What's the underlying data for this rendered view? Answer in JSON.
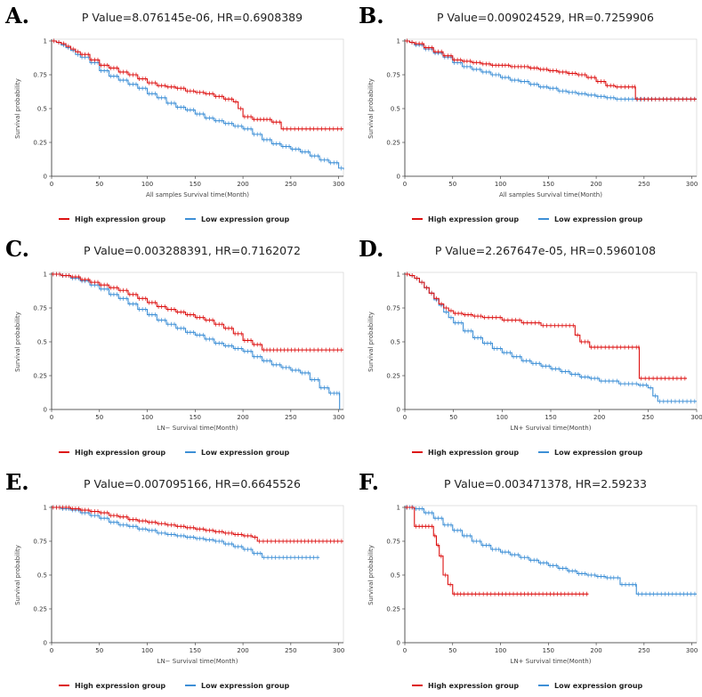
{
  "colors": {
    "high": "#dd1111",
    "low": "#3d8fd6",
    "axis": "#333333",
    "grid": "#dddddd"
  },
  "chart_data": [
    {
      "type": "line",
      "letter": "A.",
      "title": "P Value=8.076145e-06, HR=0.6908389",
      "xlabel": "All samples Survival time(Month)",
      "ylabel": "Survival probability",
      "xlim": [
        0,
        305
      ],
      "ylim": [
        0,
        1
      ],
      "xticks": [
        "0",
        "50",
        "100",
        "150",
        "200",
        "250",
        "300"
      ],
      "yticks": [
        "0",
        "0.25",
        "0.5",
        "0.75",
        "1"
      ],
      "legend": [
        "High expression group",
        "Low expression group"
      ],
      "series": [
        {
          "name": "High expression group",
          "x": [
            0,
            5,
            10,
            15,
            20,
            25,
            30,
            40,
            50,
            60,
            70,
            80,
            90,
            100,
            110,
            120,
            130,
            140,
            150,
            160,
            170,
            180,
            190,
            195,
            200,
            210,
            220,
            230,
            240,
            260,
            280,
            305
          ],
          "y": [
            1.0,
            0.99,
            0.98,
            0.96,
            0.94,
            0.92,
            0.9,
            0.86,
            0.82,
            0.8,
            0.77,
            0.75,
            0.72,
            0.69,
            0.67,
            0.66,
            0.65,
            0.63,
            0.62,
            0.61,
            0.59,
            0.57,
            0.55,
            0.5,
            0.44,
            0.42,
            0.42,
            0.4,
            0.35,
            0.35,
            0.35,
            0.35
          ]
        },
        {
          "name": "Low expression group",
          "x": [
            0,
            5,
            10,
            15,
            20,
            25,
            30,
            40,
            50,
            60,
            70,
            80,
            90,
            100,
            110,
            120,
            130,
            140,
            150,
            160,
            170,
            180,
            190,
            200,
            210,
            220,
            230,
            240,
            250,
            260,
            270,
            280,
            290,
            300,
            305
          ],
          "y": [
            1.0,
            0.99,
            0.97,
            0.95,
            0.93,
            0.9,
            0.88,
            0.84,
            0.78,
            0.74,
            0.71,
            0.68,
            0.65,
            0.61,
            0.58,
            0.54,
            0.51,
            0.49,
            0.46,
            0.43,
            0.41,
            0.39,
            0.37,
            0.35,
            0.31,
            0.27,
            0.24,
            0.22,
            0.2,
            0.18,
            0.15,
            0.12,
            0.1,
            0.06,
            0.05
          ]
        }
      ]
    },
    {
      "type": "line",
      "letter": "B.",
      "title": "P Value=0.009024529, HR=0.7259906",
      "xlabel": "All samples Survival time(Month)",
      "ylabel": "Survival probability",
      "xlim": [
        0,
        305
      ],
      "ylim": [
        0,
        1
      ],
      "xticks": [
        "0",
        "50",
        "100",
        "150",
        "200",
        "250",
        "300"
      ],
      "yticks": [
        "0",
        "0.25",
        "0.5",
        "0.75",
        "1"
      ],
      "legend": [
        "High expression group",
        "Low expression group"
      ],
      "series": [
        {
          "name": "High expression group",
          "x": [
            0,
            5,
            10,
            20,
            30,
            40,
            50,
            60,
            70,
            80,
            90,
            100,
            110,
            120,
            130,
            140,
            150,
            160,
            170,
            180,
            190,
            200,
            210,
            220,
            240,
            241,
            260,
            280,
            305
          ],
          "y": [
            1.0,
            0.99,
            0.98,
            0.95,
            0.92,
            0.89,
            0.86,
            0.85,
            0.84,
            0.83,
            0.82,
            0.82,
            0.81,
            0.81,
            0.8,
            0.79,
            0.78,
            0.77,
            0.76,
            0.75,
            0.73,
            0.7,
            0.67,
            0.66,
            0.66,
            0.57,
            0.57,
            0.57,
            0.57
          ]
        },
        {
          "name": "Low expression group",
          "x": [
            0,
            5,
            10,
            20,
            30,
            40,
            50,
            60,
            70,
            80,
            90,
            100,
            110,
            120,
            130,
            140,
            150,
            160,
            170,
            180,
            190,
            200,
            210,
            220,
            240,
            260,
            280,
            305
          ],
          "y": [
            1.0,
            0.99,
            0.97,
            0.94,
            0.91,
            0.88,
            0.84,
            0.81,
            0.79,
            0.77,
            0.75,
            0.73,
            0.71,
            0.7,
            0.68,
            0.66,
            0.65,
            0.63,
            0.62,
            0.61,
            0.6,
            0.59,
            0.58,
            0.57,
            0.57,
            0.57,
            0.57,
            0.57
          ]
        }
      ]
    },
    {
      "type": "line",
      "letter": "C.",
      "title": "P Value=0.003288391, HR=0.7162072",
      "xlabel": "LN− Survival time(Month)",
      "ylabel": "Survival probability",
      "xlim": [
        0,
        305
      ],
      "ylim": [
        0,
        1
      ],
      "xticks": [
        "0",
        "50",
        "100",
        "150",
        "200",
        "250",
        "300"
      ],
      "yticks": [
        "0",
        "0.25",
        "0.5",
        "0.75",
        "1"
      ],
      "legend": [
        "High expression group",
        "Low expression group"
      ],
      "series": [
        {
          "name": "High expression group",
          "x": [
            0,
            10,
            20,
            30,
            40,
            50,
            60,
            70,
            80,
            90,
            100,
            110,
            120,
            130,
            140,
            150,
            160,
            170,
            180,
            190,
            200,
            210,
            220,
            230,
            260,
            305
          ],
          "y": [
            1.0,
            0.99,
            0.98,
            0.96,
            0.94,
            0.92,
            0.9,
            0.88,
            0.85,
            0.82,
            0.79,
            0.76,
            0.74,
            0.72,
            0.7,
            0.68,
            0.66,
            0.63,
            0.6,
            0.56,
            0.51,
            0.48,
            0.44,
            0.44,
            0.44,
            0.44
          ]
        },
        {
          "name": "Low expression group",
          "x": [
            0,
            10,
            20,
            30,
            40,
            50,
            60,
            70,
            80,
            90,
            100,
            110,
            120,
            130,
            140,
            150,
            160,
            170,
            180,
            190,
            200,
            210,
            220,
            230,
            240,
            250,
            260,
            270,
            280,
            290,
            300,
            301
          ],
          "y": [
            1.0,
            0.99,
            0.97,
            0.95,
            0.92,
            0.89,
            0.85,
            0.82,
            0.78,
            0.74,
            0.7,
            0.66,
            0.63,
            0.6,
            0.57,
            0.55,
            0.52,
            0.49,
            0.47,
            0.45,
            0.43,
            0.39,
            0.36,
            0.33,
            0.31,
            0.29,
            0.27,
            0.22,
            0.16,
            0.12,
            0.12,
            0.0
          ]
        }
      ]
    },
    {
      "type": "line",
      "letter": "D.",
      "title": "P Value=2.267647e-05, HR=0.5960108",
      "xlabel": "LN+ Survival time(Month)",
      "ylabel": "Survival probability",
      "xlim": [
        0,
        300
      ],
      "ylim": [
        0,
        1
      ],
      "xticks": [
        "0",
        "50",
        "100",
        "150",
        "200",
        "250",
        "300"
      ],
      "yticks": [
        "0",
        "0.25",
        "0.5",
        "0.75",
        "1"
      ],
      "legend": [
        "High expression group",
        "Low expression group"
      ],
      "series": [
        {
          "name": "High expression group",
          "x": [
            0,
            5,
            10,
            15,
            20,
            25,
            30,
            35,
            40,
            45,
            50,
            60,
            70,
            80,
            100,
            120,
            140,
            160,
            175,
            180,
            190,
            200,
            240,
            241,
            290
          ],
          "y": [
            1.0,
            0.99,
            0.97,
            0.94,
            0.9,
            0.86,
            0.82,
            0.78,
            0.75,
            0.73,
            0.71,
            0.7,
            0.69,
            0.68,
            0.66,
            0.64,
            0.62,
            0.62,
            0.55,
            0.5,
            0.46,
            0.46,
            0.46,
            0.23,
            0.23
          ]
        },
        {
          "name": "Low expression group",
          "x": [
            0,
            5,
            10,
            15,
            20,
            25,
            30,
            35,
            40,
            45,
            50,
            60,
            70,
            80,
            90,
            100,
            110,
            120,
            130,
            140,
            150,
            160,
            170,
            180,
            190,
            200,
            220,
            240,
            250,
            255,
            260,
            300
          ],
          "y": [
            1.0,
            0.99,
            0.97,
            0.94,
            0.9,
            0.86,
            0.81,
            0.77,
            0.72,
            0.68,
            0.64,
            0.58,
            0.53,
            0.49,
            0.45,
            0.42,
            0.39,
            0.36,
            0.34,
            0.32,
            0.3,
            0.28,
            0.26,
            0.24,
            0.23,
            0.21,
            0.19,
            0.18,
            0.16,
            0.1,
            0.06,
            0.06
          ]
        }
      ]
    },
    {
      "type": "line",
      "letter": "E.",
      "title": "P Value=0.007095166, HR=0.6645526",
      "xlabel": "LN− Survival time(Month)",
      "ylabel": "Survival probability",
      "xlim": [
        0,
        305
      ],
      "ylim": [
        0,
        1
      ],
      "xticks": [
        "0",
        "50",
        "100",
        "150",
        "200",
        "250",
        "300"
      ],
      "yticks": [
        "0",
        "0.25",
        "0.5",
        "0.75",
        "1"
      ],
      "legend": [
        "High expression group",
        "Low expression group"
      ],
      "series": [
        {
          "name": "High expression group",
          "x": [
            0,
            10,
            20,
            30,
            40,
            50,
            60,
            70,
            80,
            90,
            100,
            110,
            120,
            130,
            140,
            150,
            160,
            170,
            180,
            190,
            200,
            210,
            215,
            240,
            270,
            305
          ],
          "y": [
            1.0,
            1.0,
            0.99,
            0.98,
            0.97,
            0.96,
            0.94,
            0.93,
            0.91,
            0.9,
            0.89,
            0.88,
            0.87,
            0.86,
            0.85,
            0.84,
            0.83,
            0.82,
            0.81,
            0.8,
            0.79,
            0.78,
            0.75,
            0.75,
            0.75,
            0.75
          ]
        },
        {
          "name": "Low expression group",
          "x": [
            0,
            10,
            20,
            30,
            40,
            50,
            60,
            70,
            80,
            90,
            100,
            110,
            120,
            130,
            140,
            150,
            160,
            170,
            180,
            190,
            200,
            210,
            220,
            240,
            260,
            280
          ],
          "y": [
            1.0,
            0.99,
            0.98,
            0.96,
            0.94,
            0.92,
            0.89,
            0.87,
            0.86,
            0.84,
            0.83,
            0.81,
            0.8,
            0.79,
            0.78,
            0.77,
            0.76,
            0.75,
            0.73,
            0.71,
            0.69,
            0.66,
            0.63,
            0.63,
            0.63,
            0.63
          ]
        }
      ]
    },
    {
      "type": "line",
      "letter": "F.",
      "title": "P Value=0.003471378, HR=2.59233",
      "xlabel": "LN+ Survival time(Month)",
      "ylabel": "Survival probability",
      "xlim": [
        0,
        305
      ],
      "ylim": [
        0,
        1
      ],
      "xticks": [
        "0",
        "50",
        "100",
        "150",
        "200",
        "250",
        "300"
      ],
      "yticks": [
        "0",
        "0.25",
        "0.5",
        "0.75",
        "1"
      ],
      "legend": [
        "High expression group",
        "Low expression group"
      ],
      "series": [
        {
          "name": "High expression group",
          "x": [
            0,
            5,
            10,
            20,
            30,
            33,
            36,
            40,
            45,
            50,
            60,
            80,
            100,
            150,
            192
          ],
          "y": [
            1.0,
            1.0,
            0.86,
            0.86,
            0.79,
            0.72,
            0.64,
            0.5,
            0.43,
            0.36,
            0.36,
            0.36,
            0.36,
            0.36,
            0.36
          ]
        },
        {
          "name": "Low expression group",
          "x": [
            0,
            10,
            20,
            30,
            40,
            50,
            60,
            70,
            80,
            90,
            100,
            110,
            120,
            130,
            140,
            150,
            160,
            170,
            180,
            190,
            200,
            210,
            220,
            225,
            240,
            242,
            270,
            305
          ],
          "y": [
            1.0,
            0.99,
            0.96,
            0.92,
            0.87,
            0.83,
            0.79,
            0.75,
            0.72,
            0.69,
            0.67,
            0.65,
            0.63,
            0.61,
            0.59,
            0.57,
            0.55,
            0.53,
            0.51,
            0.5,
            0.49,
            0.48,
            0.48,
            0.43,
            0.43,
            0.36,
            0.36,
            0.36
          ]
        }
      ]
    }
  ]
}
